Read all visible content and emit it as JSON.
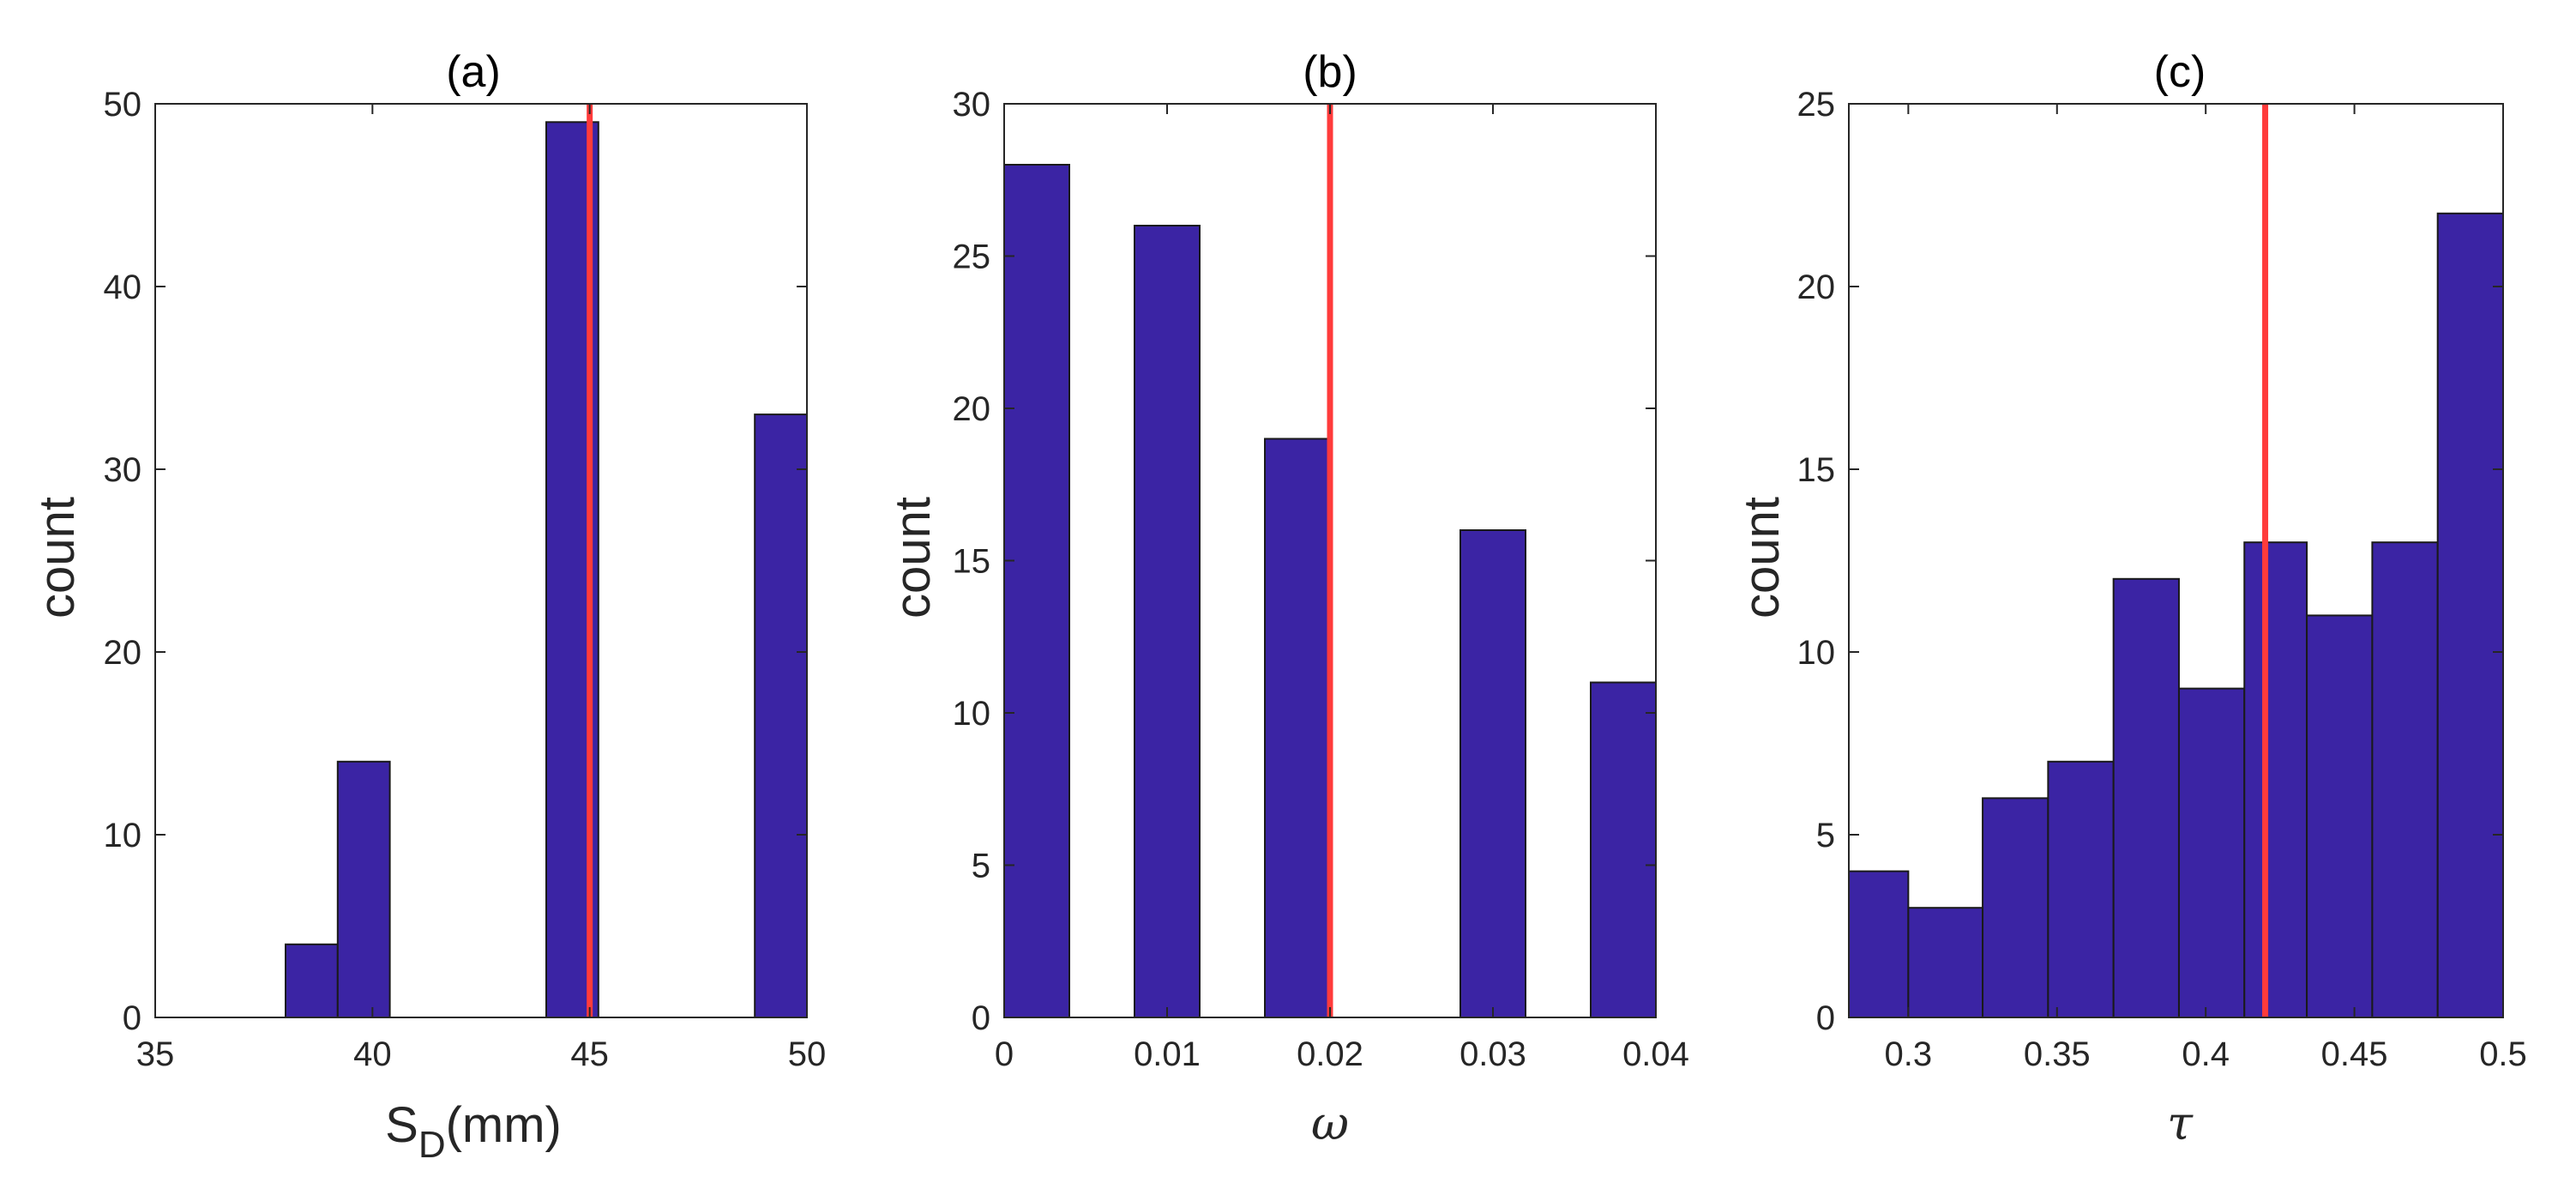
{
  "figure": {
    "colors": {
      "bar": "#3b24a4",
      "bar_edge": "#1a1a1a",
      "refline": "#ff3b3b",
      "axis": "#262626"
    }
  },
  "chart_data": [
    {
      "type": "bar",
      "title": "(a)",
      "xlabel_main": "S",
      "xlabel_sub": "D",
      "xlabel_rest": "(mm)",
      "ylabel": "count",
      "xlim": [
        35,
        50
      ],
      "ylim": [
        0,
        50
      ],
      "xticks": [
        35,
        40,
        45,
        50
      ],
      "yticks": [
        0,
        10,
        20,
        30,
        40,
        50
      ],
      "tick_format": 0,
      "bins": [
        {
          "x0": 38.0,
          "x1": 39.2,
          "count": 4
        },
        {
          "x0": 39.2,
          "x1": 40.4,
          "count": 14
        },
        {
          "x0": 44.0,
          "x1": 45.2,
          "count": 49
        },
        {
          "x0": 48.8,
          "x1": 50.0,
          "count": 33
        }
      ],
      "reference_line": 45
    },
    {
      "type": "bar",
      "title": "(b)",
      "xlabel": "ω",
      "ylabel": "count",
      "xlim": [
        0,
        0.04
      ],
      "ylim": [
        0,
        30
      ],
      "xticks": [
        0,
        0.01,
        0.02,
        0.03,
        0.04
      ],
      "yticks": [
        0,
        5,
        10,
        15,
        20,
        25,
        30
      ],
      "bins": [
        {
          "x0": 0.0,
          "x1": 0.004,
          "count": 28
        },
        {
          "x0": 0.008,
          "x1": 0.012,
          "count": 26
        },
        {
          "x0": 0.016,
          "x1": 0.02,
          "count": 19
        },
        {
          "x0": 0.028,
          "x1": 0.032,
          "count": 16
        },
        {
          "x0": 0.036,
          "x1": 0.04,
          "count": 11
        }
      ],
      "reference_line": 0.02
    },
    {
      "type": "bar",
      "title": "(c)",
      "xlabel": "τ",
      "ylabel": "count",
      "xlim": [
        0.28,
        0.5
      ],
      "ylim": [
        0,
        25
      ],
      "xticks": [
        0.3,
        0.35,
        0.4,
        0.45,
        0.5
      ],
      "yticks": [
        0,
        5,
        10,
        15,
        20,
        25
      ],
      "bins": [
        {
          "x0": 0.28,
          "x1": 0.3,
          "count": 4
        },
        {
          "x0": 0.3,
          "x1": 0.325,
          "count": 3
        },
        {
          "x0": 0.325,
          "x1": 0.347,
          "count": 6
        },
        {
          "x0": 0.347,
          "x1": 0.369,
          "count": 7
        },
        {
          "x0": 0.369,
          "x1": 0.391,
          "count": 12
        },
        {
          "x0": 0.391,
          "x1": 0.413,
          "count": 9
        },
        {
          "x0": 0.413,
          "x1": 0.434,
          "count": 13
        },
        {
          "x0": 0.434,
          "x1": 0.456,
          "count": 11
        },
        {
          "x0": 0.456,
          "x1": 0.478,
          "count": 13
        },
        {
          "x0": 0.478,
          "x1": 0.5,
          "count": 22
        }
      ],
      "reference_line": 0.42
    }
  ]
}
